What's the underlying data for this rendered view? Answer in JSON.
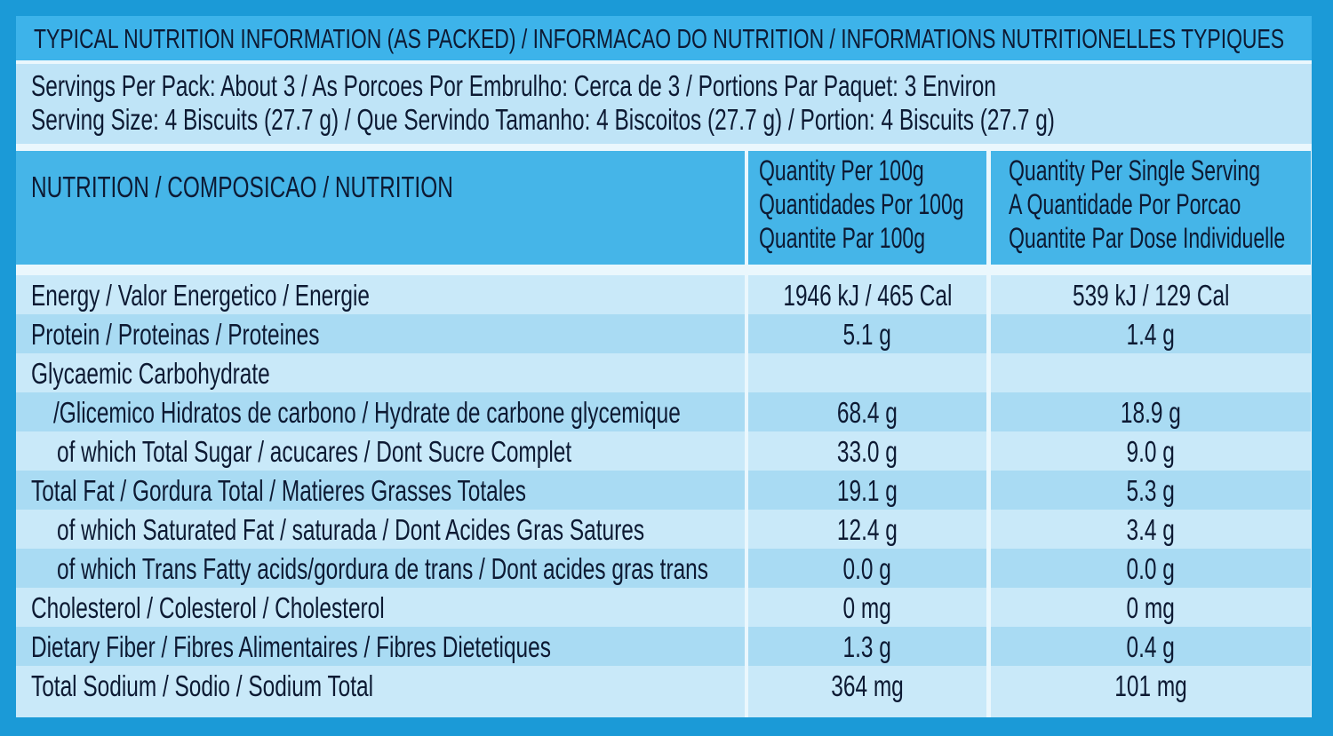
{
  "title": "TYPICAL NUTRITION INFORMATION (AS PACKED) / INFORMACAO DO NUTRITION / INFORMATIONS NUTRITIONELLES TYPIQUES",
  "servings": [
    "Servings Per Pack: About 3 / As Porcoes Por Embrulho: Cerca de 3 / Portions Par Paquet: 3 Environ",
    "Serving Size: 4 Biscuits (27.7 g) / Que Servindo Tamanho: 4 Biscoitos (27.7 g) / Portion: 4 Biscuits (27.7 g)"
  ],
  "header": {
    "nutrition": "NUTRITION / COMPOSICAO / NUTRITION",
    "per100": [
      "Quantity Per 100g",
      "Quantidades Por 100g",
      "Quantite Par 100g"
    ],
    "per_serving": [
      "Quantity Per Single Serving",
      "A Quantidade Por Porcao",
      "Quantite Par Dose Individuelle"
    ]
  },
  "rows": [
    {
      "label": "Energy / Valor Energetico / Energie",
      "per100": "1946 kJ /  465 Cal",
      "per_serving": "539 kJ / 129 Cal"
    },
    {
      "label": "Protein / Proteinas / Proteines",
      "per100": "5.1 g",
      "per_serving": "1.4 g"
    },
    {
      "label": "Glycaemic Carbohydrate"
    },
    {
      "label": "/Glicemico Hidratos de carbono / Hydrate de carbone glycemique",
      "per100": "68.4 g",
      "per_serving": "18.9 g"
    },
    {
      "label": "of which Total Sugar / acucares / Dont Sucre Complet",
      "per100": "33.0 g",
      "per_serving": "9.0 g"
    },
    {
      "label": "Total Fat / Gordura Total / Matieres Grasses Totales",
      "per100": "19.1 g",
      "per_serving": "5.3 g"
    },
    {
      "label": "of which Saturated Fat / saturada / Dont Acides Gras Satures",
      "per100": "12.4 g",
      "per_serving": "3.4 g"
    },
    {
      "label": "of which Trans Fatty acids/gordura de trans / Dont acides gras trans",
      "per100": "0.0 g",
      "per_serving": "0.0 g"
    },
    {
      "label": "Cholesterol / Colesterol / Cholesterol",
      "per100": "0 mg",
      "per_serving": "0 mg"
    },
    {
      "label": "Dietary Fiber / Fibres Alimentaires / Fibres Dietetiques",
      "per100": "1.3 g",
      "per_serving": "0.4 g"
    },
    {
      "label": "Total Sodium / Sodio / Sodium Total",
      "per100": "364 mg",
      "per_serving": "101 mg"
    }
  ]
}
